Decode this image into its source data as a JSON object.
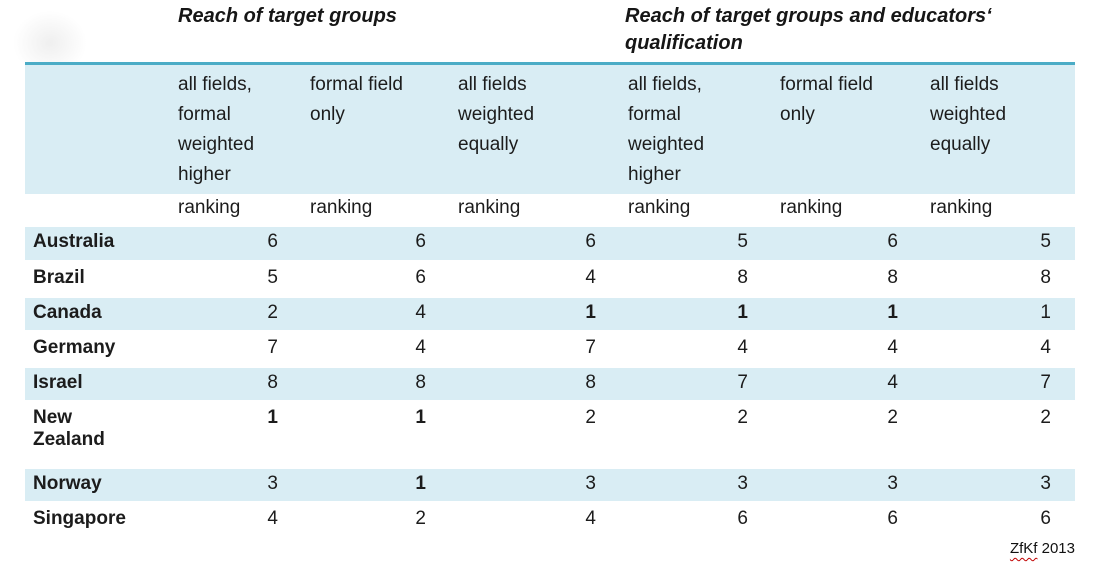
{
  "group_titles": {
    "left": "Reach of target groups",
    "right": "Reach of target groups and educators‘\nqualification"
  },
  "table": {
    "columns": [
      "all fields,\nformal\nweighted\nhigher",
      "formal field\nonly",
      "all fields\nweighted\nequally",
      "all fields,\nformal\nweighted\nhigher",
      "formal field\nonly",
      "all fields\nweighted\nequally"
    ],
    "ranking_label": "ranking",
    "rows": [
      {
        "country": "Australia",
        "values": [
          "6",
          "6",
          "6",
          "5",
          "6",
          "5"
        ],
        "bold": [
          false,
          false,
          false,
          false,
          false,
          false
        ]
      },
      {
        "country": "Brazil",
        "values": [
          "5",
          "6",
          "4",
          "8",
          "8",
          "8"
        ],
        "bold": [
          false,
          false,
          false,
          false,
          false,
          false
        ]
      },
      {
        "country": "Canada",
        "values": [
          "2",
          "4",
          "1",
          "1",
          "1",
          "1"
        ],
        "bold": [
          false,
          false,
          true,
          true,
          true,
          false
        ]
      },
      {
        "country": "Germany",
        "values": [
          "7",
          "4",
          "7",
          "4",
          "4",
          "4"
        ],
        "bold": [
          false,
          false,
          false,
          false,
          false,
          false
        ]
      },
      {
        "country": "Israel",
        "values": [
          "8",
          "8",
          "8",
          "7",
          "4",
          "7"
        ],
        "bold": [
          false,
          false,
          false,
          false,
          false,
          false
        ]
      },
      {
        "country": "New\nZealand",
        "values": [
          "1",
          "1",
          "2",
          "2",
          "2",
          "2"
        ],
        "bold": [
          true,
          true,
          false,
          false,
          false,
          false
        ]
      },
      {
        "country": "Norway",
        "values": [
          "3",
          "1",
          "3",
          "3",
          "3",
          "3"
        ],
        "bold": [
          false,
          true,
          false,
          false,
          false,
          false
        ]
      },
      {
        "country": "Singapore",
        "values": [
          "4",
          "2",
          "4",
          "6",
          "6",
          "6"
        ],
        "bold": [
          false,
          false,
          false,
          false,
          false,
          false
        ]
      }
    ]
  },
  "chart_data": {
    "type": "table",
    "column_groups": [
      "Reach of target groups",
      "Reach of target groups and educators‘ qualification"
    ],
    "columns": [
      "all fields, formal weighted higher",
      "formal field only",
      "all fields weighted equally",
      "all fields, formal weighted higher",
      "formal field only",
      "all fields weighted equally"
    ],
    "unit": "ranking",
    "rows": {
      "Australia": [
        6,
        6,
        6,
        5,
        6,
        5
      ],
      "Brazil": [
        5,
        6,
        4,
        8,
        8,
        8
      ],
      "Canada": [
        2,
        4,
        1,
        1,
        1,
        1
      ],
      "Germany": [
        7,
        4,
        7,
        4,
        4,
        4
      ],
      "Israel": [
        8,
        8,
        8,
        7,
        4,
        7
      ],
      "New Zealand": [
        1,
        1,
        2,
        2,
        2,
        2
      ],
      "Norway": [
        3,
        1,
        3,
        3,
        3,
        3
      ],
      "Singapore": [
        4,
        2,
        4,
        6,
        6,
        6
      ]
    }
  },
  "footer": {
    "source_label": "ZfKf",
    "year": " 2013"
  },
  "colors": {
    "accent_line": "#4bacc6",
    "band_fill": "#d9edf4",
    "squiggle": "#c00000",
    "text": "#1c1c1c"
  }
}
